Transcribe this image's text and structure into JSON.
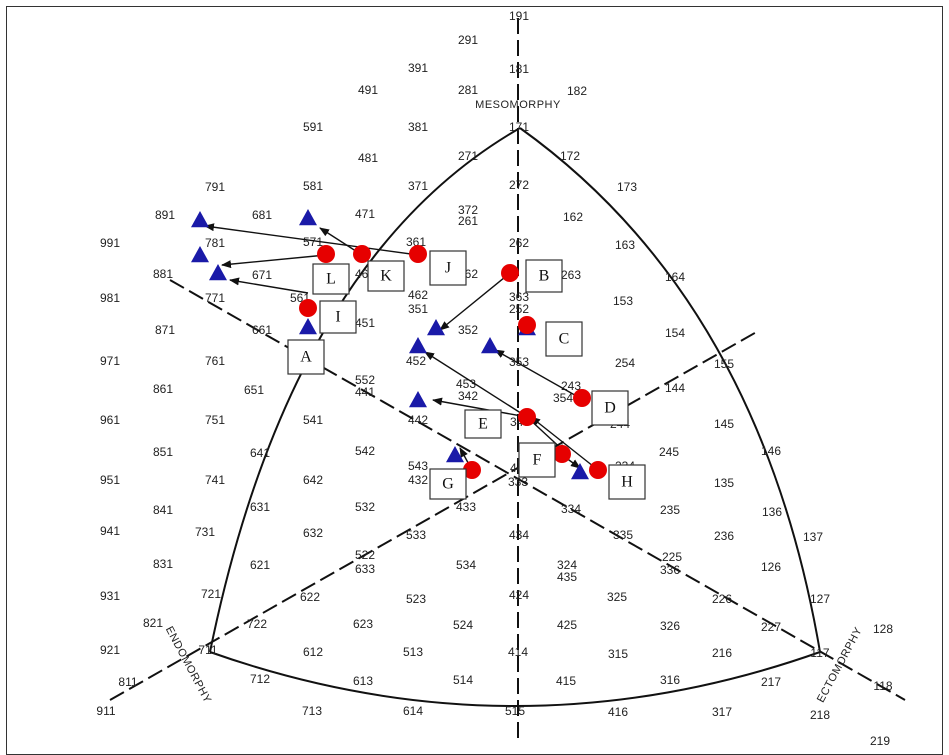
{
  "axis_labels": {
    "mesomorphy": "MESOMORPHY",
    "endomorphy": "ENDOMORPHY",
    "ectomorphy": "ECTOMORPHY"
  },
  "colors": {
    "triangle_marker": "#1a1aa8",
    "circle_marker": "#e60000",
    "line": "#111111"
  },
  "somatotype_codes": [
    {
      "t": "191"
    },
    {
      "t": "291"
    },
    {
      "t": "391"
    },
    {
      "t": "181"
    },
    {
      "t": "281"
    },
    {
      "t": "182"
    },
    {
      "t": "491"
    },
    {
      "t": "591"
    },
    {
      "t": "381"
    },
    {
      "t": "171"
    },
    {
      "t": "481"
    },
    {
      "t": "271"
    },
    {
      "t": "172"
    },
    {
      "t": "791"
    },
    {
      "t": "581"
    },
    {
      "t": "371"
    },
    {
      "t": "272"
    },
    {
      "t": "173"
    },
    {
      "t": "891"
    },
    {
      "t": "681"
    },
    {
      "t": "471"
    },
    {
      "t": "372"
    },
    {
      "t": "261"
    },
    {
      "t": "162"
    },
    {
      "t": "991"
    },
    {
      "t": "781"
    },
    {
      "t": "571"
    },
    {
      "t": "361"
    },
    {
      "t": "262"
    },
    {
      "t": "163"
    },
    {
      "t": "881"
    },
    {
      "t": "671"
    },
    {
      "t": "461"
    },
    {
      "t": "362"
    },
    {
      "t": "263"
    },
    {
      "t": "164"
    },
    {
      "t": "981"
    },
    {
      "t": "771"
    },
    {
      "t": "561"
    },
    {
      "t": "462"
    },
    {
      "t": "351"
    },
    {
      "t": "363"
    },
    {
      "t": "252"
    },
    {
      "t": "153"
    },
    {
      "t": "871"
    },
    {
      "t": "661"
    },
    {
      "t": "451"
    },
    {
      "t": "352"
    },
    {
      "t": "154"
    },
    {
      "t": "971"
    },
    {
      "t": "761"
    },
    {
      "t": "452"
    },
    {
      "t": "353"
    },
    {
      "t": "254"
    },
    {
      "t": "155"
    },
    {
      "t": "861"
    },
    {
      "t": "651"
    },
    {
      "t": "552"
    },
    {
      "t": "441"
    },
    {
      "t": "453"
    },
    {
      "t": "342"
    },
    {
      "t": "243"
    },
    {
      "t": "354"
    },
    {
      "t": "144"
    },
    {
      "t": "961"
    },
    {
      "t": "751"
    },
    {
      "t": "541"
    },
    {
      "t": "442"
    },
    {
      "t": "343"
    },
    {
      "t": "244"
    },
    {
      "t": "145"
    },
    {
      "t": "851"
    },
    {
      "t": "641"
    },
    {
      "t": "542"
    },
    {
      "t": "245"
    },
    {
      "t": "146"
    },
    {
      "t": "951"
    },
    {
      "t": "741"
    },
    {
      "t": "642"
    },
    {
      "t": "543"
    },
    {
      "t": "432"
    },
    {
      "t": "443"
    },
    {
      "t": "333"
    },
    {
      "t": "234"
    },
    {
      "t": "135"
    },
    {
      "t": "841"
    },
    {
      "t": "631"
    },
    {
      "t": "532"
    },
    {
      "t": "433"
    },
    {
      "t": "334"
    },
    {
      "t": "235"
    },
    {
      "t": "136"
    },
    {
      "t": "941"
    },
    {
      "t": "731"
    },
    {
      "t": "632"
    },
    {
      "t": "533"
    },
    {
      "t": "434"
    },
    {
      "t": "335"
    },
    {
      "t": "236"
    },
    {
      "t": "137"
    },
    {
      "t": "831"
    },
    {
      "t": "621"
    },
    {
      "t": "522"
    },
    {
      "t": "633"
    },
    {
      "t": "534"
    },
    {
      "t": "324"
    },
    {
      "t": "435"
    },
    {
      "t": "225"
    },
    {
      "t": "336"
    },
    {
      "t": "126"
    },
    {
      "t": "931"
    },
    {
      "t": "721"
    },
    {
      "t": "622"
    },
    {
      "t": "523"
    },
    {
      "t": "424"
    },
    {
      "t": "325"
    },
    {
      "t": "226"
    },
    {
      "t": "127"
    },
    {
      "t": "821"
    },
    {
      "t": "722"
    },
    {
      "t": "623"
    },
    {
      "t": "524"
    },
    {
      "t": "425"
    },
    {
      "t": "326"
    },
    {
      "t": "227"
    },
    {
      "t": "128"
    },
    {
      "t": "921"
    },
    {
      "t": "711"
    },
    {
      "t": "612"
    },
    {
      "t": "513"
    },
    {
      "t": "414"
    },
    {
      "t": "315"
    },
    {
      "t": "216"
    },
    {
      "t": "117"
    },
    {
      "t": "811"
    },
    {
      "t": "712"
    },
    {
      "t": "613"
    },
    {
      "t": "514"
    },
    {
      "t": "415"
    },
    {
      "t": "316"
    },
    {
      "t": "217"
    },
    {
      "t": "118"
    },
    {
      "t": "911"
    },
    {
      "t": "713"
    },
    {
      "t": "614"
    },
    {
      "t": "515"
    },
    {
      "t": "416"
    },
    {
      "t": "317"
    },
    {
      "t": "218"
    },
    {
      "t": "219"
    }
  ],
  "point_labels": [
    "A",
    "B",
    "C",
    "D",
    "E",
    "F",
    "G",
    "H",
    "I",
    "J",
    "K",
    "L"
  ]
}
